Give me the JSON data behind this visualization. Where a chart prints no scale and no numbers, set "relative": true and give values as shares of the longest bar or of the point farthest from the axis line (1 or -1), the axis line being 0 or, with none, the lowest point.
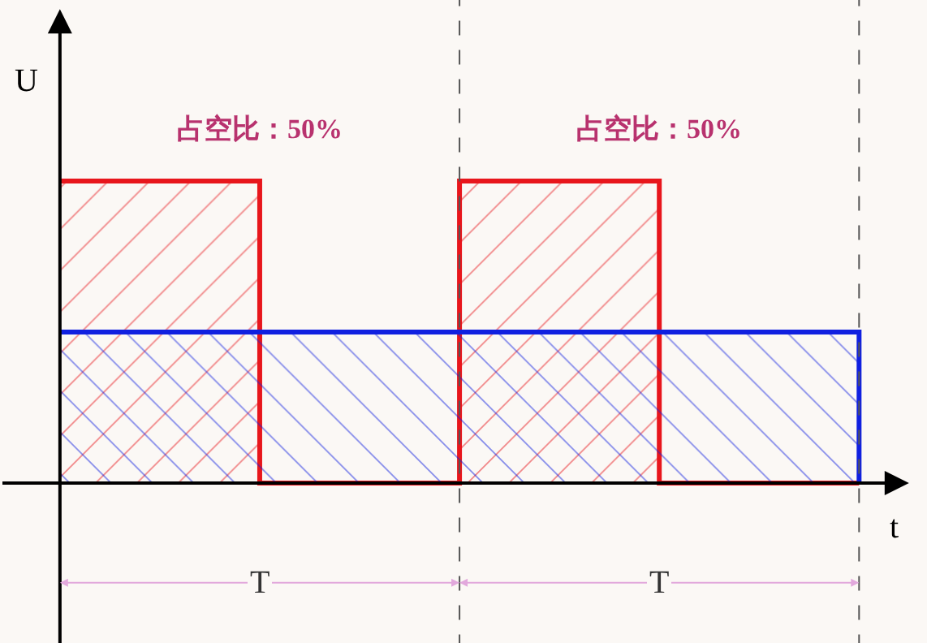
{
  "chart_data": {
    "type": "area",
    "relative": true,
    "categories": [
      null,
      null,
      null,
      null,
      null
    ],
    "series": [
      {
        "color": "#e8161c",
        "values": [
          1,
          0,
          1,
          0,
          0
        ]
      },
      {
        "color": "#1020e0",
        "values": [
          0.5,
          0.5,
          0.5,
          0.5,
          0
        ]
      }
    ],
    "xlabel": "t",
    "ylabel": "U",
    "annotations": [
      "占空比：50%",
      "占空比：50%",
      "T",
      "T"
    ],
    "legend": false,
    "grid": false
  }
}
